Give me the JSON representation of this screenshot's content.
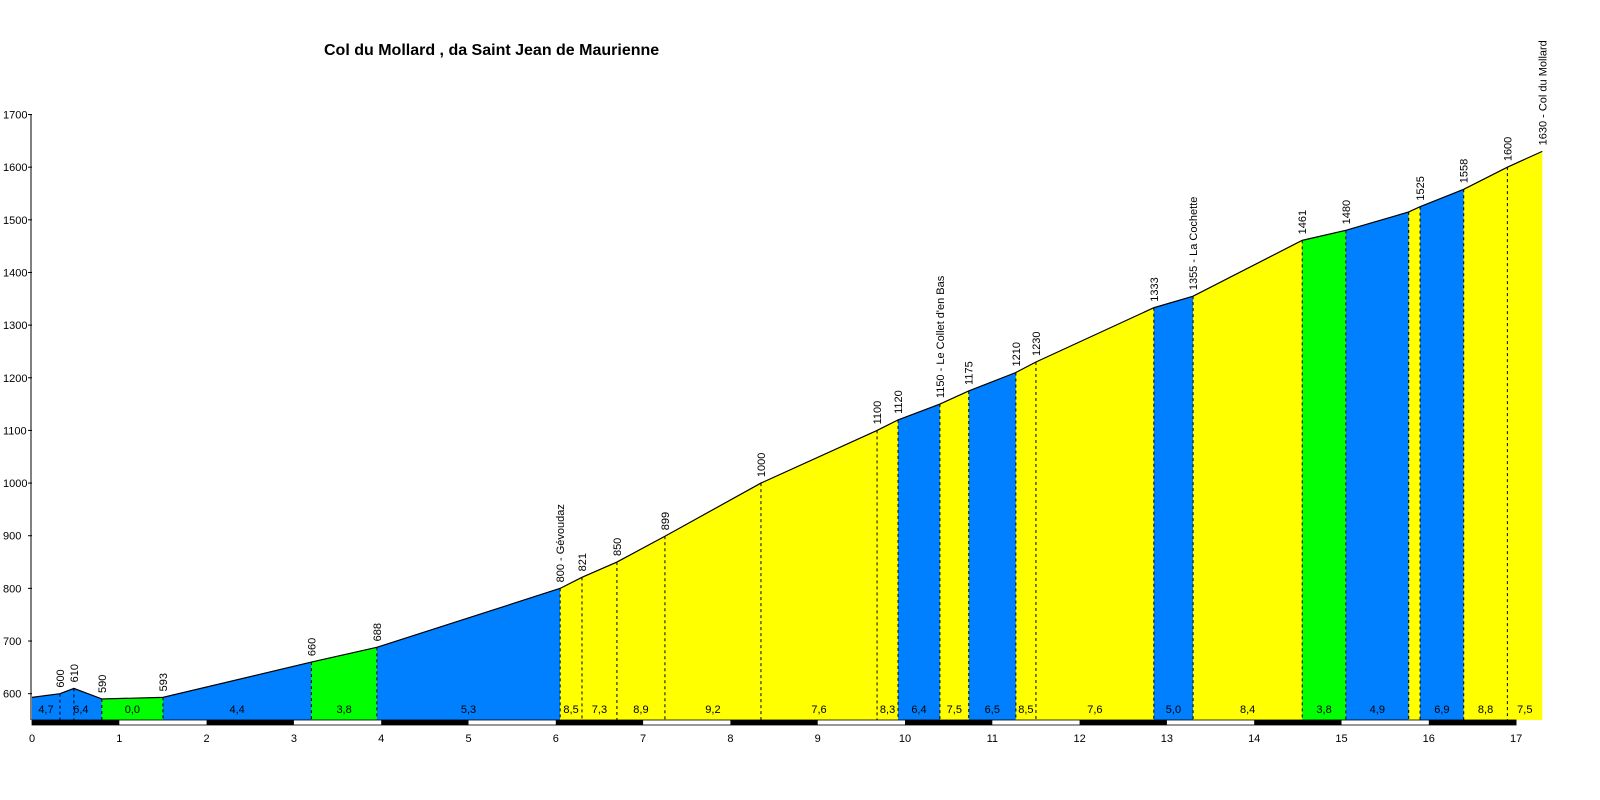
{
  "chart_data": {
    "type": "area",
    "title": "Col du Mollard , da Saint Jean de Maurienne",
    "xlabel": "",
    "ylabel": "",
    "xlim": [
      0,
      17
    ],
    "ylim": [
      550,
      1700
    ],
    "x_ticks": [
      0,
      1,
      2,
      3,
      4,
      5,
      6,
      7,
      8,
      9,
      10,
      11,
      12,
      13,
      14,
      15,
      16,
      17
    ],
    "y_ticks": [
      600,
      700,
      800,
      900,
      1000,
      1100,
      1200,
      1300,
      1400,
      1500,
      1600,
      1700
    ],
    "colors": {
      "low": "#00ff00",
      "mid": "#0080ff",
      "high": "#ffff00",
      "outline": "#000000"
    },
    "profile": [
      {
        "km": 0.0,
        "elev": 593,
        "label": ""
      },
      {
        "km": 0.32,
        "elev": 600,
        "label": "600"
      },
      {
        "km": 0.48,
        "elev": 610,
        "label": "610"
      },
      {
        "km": 0.8,
        "elev": 590,
        "label": "590"
      },
      {
        "km": 1.5,
        "elev": 593,
        "label": "593"
      },
      {
        "km": 3.2,
        "elev": 660,
        "label": "660"
      },
      {
        "km": 3.95,
        "elev": 688,
        "label": "688"
      },
      {
        "km": 6.05,
        "elev": 800,
        "label": "800 - Gévoudaz"
      },
      {
        "km": 6.3,
        "elev": 821,
        "label": "821"
      },
      {
        "km": 6.7,
        "elev": 850,
        "label": "850"
      },
      {
        "km": 7.25,
        "elev": 899,
        "label": "899"
      },
      {
        "km": 8.35,
        "elev": 1000,
        "label": "1000"
      },
      {
        "km": 9.68,
        "elev": 1100,
        "label": "1100"
      },
      {
        "km": 9.92,
        "elev": 1120,
        "label": "1120"
      },
      {
        "km": 10.4,
        "elev": 1150,
        "label": "1150 - Le Collet d'en Bas"
      },
      {
        "km": 10.73,
        "elev": 1175,
        "label": "1175"
      },
      {
        "km": 11.27,
        "elev": 1210,
        "label": "1210"
      },
      {
        "km": 11.5,
        "elev": 1230,
        "label": "1230"
      },
      {
        "km": 12.85,
        "elev": 1333,
        "label": "1333"
      },
      {
        "km": 13.3,
        "elev": 1355,
        "label": "1355 - La Cochette"
      },
      {
        "km": 14.55,
        "elev": 1461,
        "label": "1461"
      },
      {
        "km": 15.05,
        "elev": 1480,
        "label": "1480"
      },
      {
        "km": 15.77,
        "elev": 1515,
        "label": ""
      },
      {
        "km": 15.9,
        "elev": 1525,
        "label": "1525"
      },
      {
        "km": 16.4,
        "elev": 1558,
        "label": "1558"
      },
      {
        "km": 16.9,
        "elev": 1600,
        "label": "1600"
      },
      {
        "km": 17.3,
        "elev": 1630,
        "label": "1630 - Col du Mollard"
      }
    ],
    "segments": [
      {
        "from": 0.0,
        "to": 0.32,
        "gradient": "4,7",
        "color": "mid"
      },
      {
        "from": 0.32,
        "to": 0.8,
        "gradient": "6,4",
        "color": "mid"
      },
      {
        "from": 0.8,
        "to": 1.5,
        "gradient": "0,0",
        "color": "low"
      },
      {
        "from": 1.5,
        "to": 3.2,
        "gradient": "4,4",
        "color": "mid"
      },
      {
        "from": 3.2,
        "to": 3.95,
        "gradient": "3,8",
        "color": "low"
      },
      {
        "from": 3.95,
        "to": 6.05,
        "gradient": "5,3",
        "color": "mid"
      },
      {
        "from": 6.05,
        "to": 6.3,
        "gradient": "8,5",
        "color": "high"
      },
      {
        "from": 6.3,
        "to": 6.7,
        "gradient": "7,3",
        "color": "high"
      },
      {
        "from": 6.7,
        "to": 7.25,
        "gradient": "8,9",
        "color": "high"
      },
      {
        "from": 7.25,
        "to": 8.35,
        "gradient": "9,2",
        "color": "high"
      },
      {
        "from": 8.35,
        "to": 9.68,
        "gradient": "7,6",
        "color": "high"
      },
      {
        "from": 9.68,
        "to": 9.92,
        "gradient": "8,3",
        "color": "high"
      },
      {
        "from": 9.92,
        "to": 10.4,
        "gradient": "6,4",
        "color": "mid"
      },
      {
        "from": 10.4,
        "to": 10.73,
        "gradient": "7,5",
        "color": "high"
      },
      {
        "from": 10.73,
        "to": 11.27,
        "gradient": "6,5",
        "color": "mid"
      },
      {
        "from": 11.27,
        "to": 11.5,
        "gradient": "8,5",
        "color": "high"
      },
      {
        "from": 11.5,
        "to": 12.85,
        "gradient": "7,6",
        "color": "high"
      },
      {
        "from": 12.85,
        "to": 13.3,
        "gradient": "5,0",
        "color": "mid"
      },
      {
        "from": 13.3,
        "to": 14.55,
        "gradient": "8,4",
        "color": "high"
      },
      {
        "from": 14.55,
        "to": 15.05,
        "gradient": "3,8",
        "color": "low"
      },
      {
        "from": 15.05,
        "to": 15.77,
        "gradient": "4,9",
        "color": "mid"
      },
      {
        "from": 15.77,
        "to": 15.9,
        "gradient": "",
        "color": "high"
      },
      {
        "from": 15.9,
        "to": 16.4,
        "gradient": "6,9",
        "color": "mid"
      },
      {
        "from": 16.4,
        "to": 16.9,
        "gradient": "8,8",
        "color": "high"
      },
      {
        "from": 16.9,
        "to": 17.3,
        "gradient": "7,5",
        "color": "high"
      }
    ]
  }
}
